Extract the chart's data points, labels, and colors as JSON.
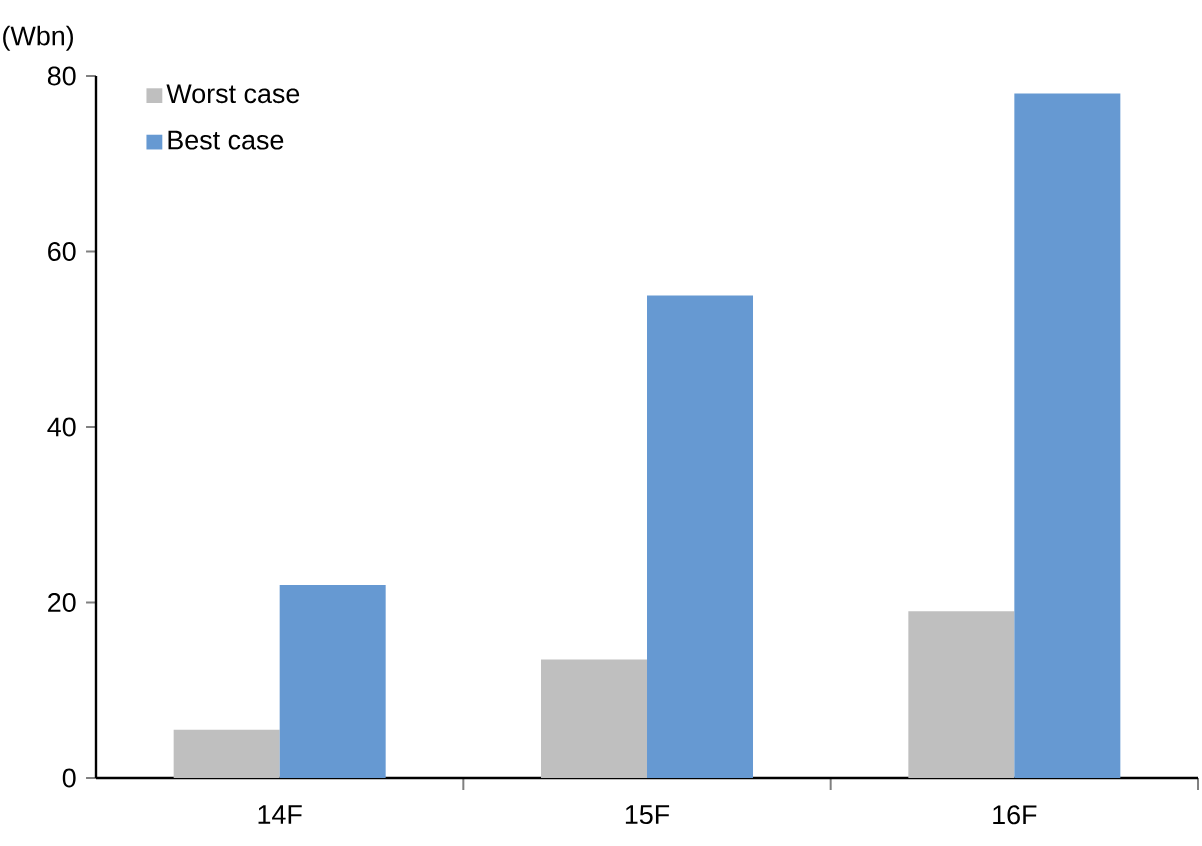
{
  "chart_data": {
    "type": "bar",
    "ylabel": "(Wbn)",
    "categories": [
      "14F",
      "15F",
      "16F"
    ],
    "series": [
      {
        "name": "Worst case",
        "color": "#bfbfbf",
        "values": [
          5.5,
          13.5,
          19
        ]
      },
      {
        "name": "Best case",
        "color": "#6699d2",
        "values": [
          22,
          55,
          78
        ]
      }
    ],
    "ylim": [
      0,
      80
    ],
    "yticks": [
      0,
      20,
      40,
      60,
      80
    ],
    "legend": "top left",
    "grid": false
  }
}
